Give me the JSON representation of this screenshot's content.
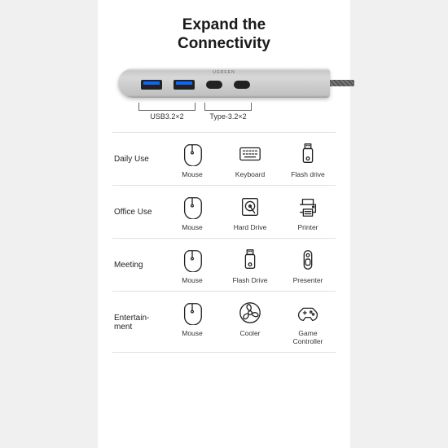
{
  "title_line1": "Expand the",
  "title_line2": "Connectivity",
  "brand_text": "UGREEN",
  "port_group_1_label": "USB3.2×2",
  "port_group_2_label": "Type-3.2×2",
  "colors": {
    "background": "#ffffff",
    "text": "#1a1a1a",
    "icon_stroke": "#222222",
    "divider": "#e0e0e0",
    "hub_metal_light": "#d8d8d8",
    "hub_metal_dark": "#9a9a9a",
    "usb_blue": "#0a66ff"
  },
  "rows": [
    {
      "label": "Daily Use",
      "items": [
        {
          "icon": "mouse",
          "label": "Mouse"
        },
        {
          "icon": "keyboard",
          "label": "Keyboard"
        },
        {
          "icon": "flashdrive",
          "label": "Flash drive"
        }
      ]
    },
    {
      "label": "Office Use",
      "items": [
        {
          "icon": "mouse",
          "label": "Mouse"
        },
        {
          "icon": "harddrive",
          "label": "Hard Drive"
        },
        {
          "icon": "printer",
          "label": "Printer"
        }
      ]
    },
    {
      "label": "Meeting",
      "items": [
        {
          "icon": "mouse",
          "label": "Mouse"
        },
        {
          "icon": "flashdrive",
          "label": "Flash Drive"
        },
        {
          "icon": "presenter",
          "label": "Presenter"
        }
      ]
    },
    {
      "label": "Entertain-ment",
      "items": [
        {
          "icon": "mouse",
          "label": "Mouse"
        },
        {
          "icon": "cooler",
          "label": "Cooler"
        },
        {
          "icon": "controller",
          "label": "Game Controller"
        }
      ]
    }
  ]
}
